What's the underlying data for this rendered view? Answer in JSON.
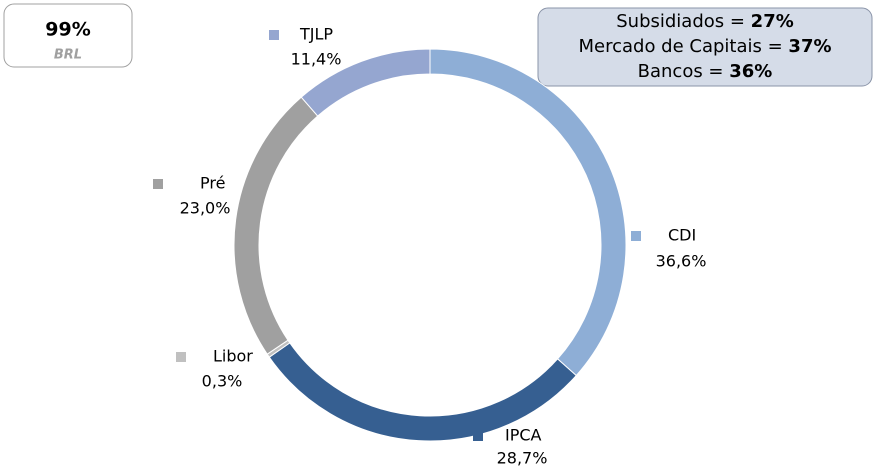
{
  "chart_data": {
    "type": "donut",
    "categories": [
      "CDI",
      "IPCA",
      "Libor",
      "Pré",
      "TJLP"
    ],
    "values": [
      36.6,
      28.7,
      0.3,
      23.0,
      11.4
    ],
    "value_labels": [
      "36,6%",
      "28,7%",
      "0,3%",
      "23,0%",
      "11,4%"
    ],
    "colors": [
      "#8eaed6",
      "#365f91",
      "#c0c0c0",
      "#a0a0a0",
      "#95a6d0"
    ],
    "badge": {
      "value": "99%",
      "label": "BRL"
    },
    "annotations": [
      {
        "label": "Subsidiados = ",
        "value": "27%"
      },
      {
        "label": "Mercado de Capitais = ",
        "value": "37%"
      },
      {
        "label": "Bancos = ",
        "value": "36%"
      }
    ]
  }
}
